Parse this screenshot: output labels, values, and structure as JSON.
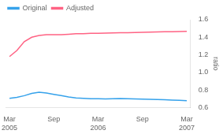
{
  "chart_data": {
    "type": "line",
    "ylabel": "ratio",
    "categories": [
      "Mar\n2005",
      null,
      null,
      null,
      null,
      null,
      "Sep",
      null,
      null,
      null,
      null,
      null,
      "Mar\n2006",
      null,
      null,
      null,
      null,
      null,
      "Sep",
      null,
      null,
      null,
      null,
      null,
      "Mar\n2007"
    ],
    "series": [
      {
        "name": "Original",
        "values": [
          0.705,
          0.715,
          0.735,
          0.76,
          0.775,
          0.765,
          0.75,
          0.735,
          0.72,
          0.71,
          0.705,
          0.7,
          0.7,
          0.698,
          0.7,
          0.702,
          0.7,
          0.698,
          0.695,
          0.693,
          0.69,
          0.688,
          0.685,
          0.682,
          0.678
        ]
      },
      {
        "name": "Adjusted",
        "values": [
          1.18,
          1.25,
          1.35,
          1.4,
          1.42,
          1.43,
          1.43,
          1.43,
          1.435,
          1.44,
          1.44,
          1.445,
          1.445,
          1.448,
          1.45,
          1.452,
          1.453,
          1.455,
          1.456,
          1.458,
          1.46,
          1.462,
          1.463,
          1.465,
          1.468
        ]
      }
    ],
    "ylim": [
      0.6,
      1.6
    ],
    "yticks": [
      0.6,
      0.8,
      {
        "value": 1.0,
        "label": "1.0"
      },
      1.2,
      1.4,
      1.6
    ],
    "grid": false,
    "legend": "upper left"
  }
}
